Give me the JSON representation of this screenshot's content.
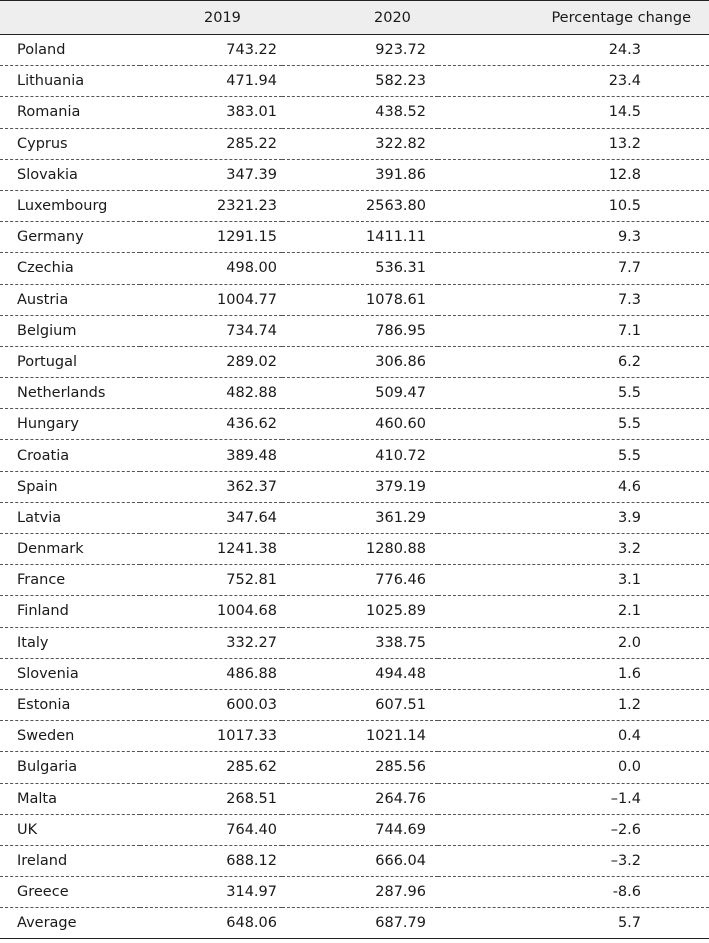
{
  "table": {
    "headers": {
      "country": "",
      "y2019": "2019",
      "y2020": "2020",
      "pct": "Percentage change"
    },
    "rows": [
      {
        "country": "Poland",
        "v2019": "743.22",
        "v2020": "923.72",
        "pct": "24.3"
      },
      {
        "country": "Lithuania",
        "v2019": "471.94",
        "v2020": "582.23",
        "pct": "23.4"
      },
      {
        "country": "Romania",
        "v2019": "383.01",
        "v2020": "438.52",
        "pct": "14.5"
      },
      {
        "country": "Cyprus",
        "v2019": "285.22",
        "v2020": "322.82",
        "pct": "13.2"
      },
      {
        "country": "Slovakia",
        "v2019": "347.39",
        "v2020": "391.86",
        "pct": "12.8"
      },
      {
        "country": "Luxembourg",
        "v2019": "2321.23",
        "v2020": "2563.80",
        "pct": "10.5"
      },
      {
        "country": "Germany",
        "v2019": "1291.15",
        "v2020": "1411.11",
        "pct": "9.3"
      },
      {
        "country": "Czechia",
        "v2019": "498.00",
        "v2020": "536.31",
        "pct": "7.7"
      },
      {
        "country": "Austria",
        "v2019": "1004.77",
        "v2020": "1078.61",
        "pct": "7.3"
      },
      {
        "country": "Belgium",
        "v2019": "734.74",
        "v2020": "786.95",
        "pct": "7.1"
      },
      {
        "country": "Portugal",
        "v2019": "289.02",
        "v2020": "306.86",
        "pct": "6.2"
      },
      {
        "country": "Netherlands",
        "v2019": "482.88",
        "v2020": "509.47",
        "pct": "5.5"
      },
      {
        "country": "Hungary",
        "v2019": "436.62",
        "v2020": "460.60",
        "pct": "5.5"
      },
      {
        "country": "Croatia",
        "v2019": "389.48",
        "v2020": "410.72",
        "pct": "5.5"
      },
      {
        "country": "Spain",
        "v2019": "362.37",
        "v2020": "379.19",
        "pct": "4.6"
      },
      {
        "country": "Latvia",
        "v2019": "347.64",
        "v2020": "361.29",
        "pct": "3.9"
      },
      {
        "country": "Denmark",
        "v2019": "1241.38",
        "v2020": "1280.88",
        "pct": "3.2"
      },
      {
        "country": "France",
        "v2019": "752.81",
        "v2020": "776.46",
        "pct": "3.1"
      },
      {
        "country": "Finland",
        "v2019": "1004.68",
        "v2020": "1025.89",
        "pct": "2.1"
      },
      {
        "country": "Italy",
        "v2019": "332.27",
        "v2020": "338.75",
        "pct": "2.0"
      },
      {
        "country": "Slovenia",
        "v2019": "486.88",
        "v2020": "494.48",
        "pct": "1.6"
      },
      {
        "country": "Estonia",
        "v2019": "600.03",
        "v2020": "607.51",
        "pct": "1.2"
      },
      {
        "country": "Sweden",
        "v2019": "1017.33",
        "v2020": "1021.14",
        "pct": "0.4"
      },
      {
        "country": "Bulgaria",
        "v2019": "285.62",
        "v2020": "285.56",
        "pct": "0.0"
      },
      {
        "country": "Malta",
        "v2019": "268.51",
        "v2020": "264.76",
        "pct": "–1.4"
      },
      {
        "country": "UK",
        "v2019": "764.40",
        "v2020": "744.69",
        "pct": "–2.6"
      },
      {
        "country": "Ireland",
        "v2019": "688.12",
        "v2020": "666.04",
        "pct": "–3.2"
      },
      {
        "country": "Greece",
        "v2019": "314.97",
        "v2020": "287.96",
        "pct": "-8.6"
      }
    ],
    "average": {
      "country": "Average",
      "v2019": "648.06",
      "v2020": "687.79",
      "pct": "5.7"
    }
  }
}
